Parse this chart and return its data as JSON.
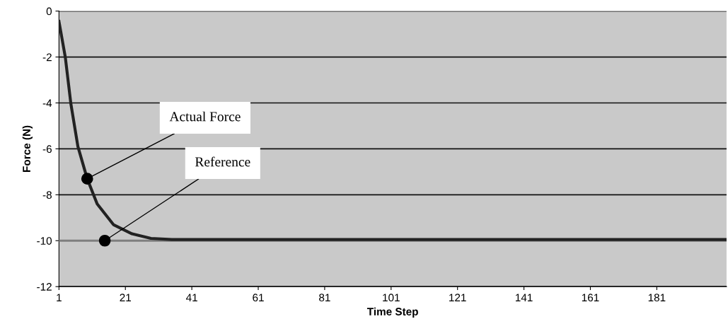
{
  "chart_data": {
    "type": "line",
    "xlabel": "Time Step",
    "ylabel": "Force (N)",
    "series": [
      {
        "name": "Reference",
        "color": "#7f7f7f",
        "x": [
          1,
          14.8,
          202
        ],
        "values": [
          -10,
          -10,
          -10
        ]
      },
      {
        "name": "Actual Force",
        "color": "#222222",
        "x": [
          1,
          2.9,
          4.6,
          6.7,
          9.5,
          12.5,
          17.4,
          23,
          28.7,
          35,
          41,
          61,
          81,
          101,
          121,
          141,
          161,
          181,
          202
        ],
        "values": [
          -0.45,
          -2.0,
          -4.05,
          -5.9,
          -7.3,
          -8.4,
          -9.3,
          -9.7,
          -9.9,
          -9.95,
          -9.95,
          -9.95,
          -9.95,
          -9.95,
          -9.95,
          -9.95,
          -9.95,
          -9.95,
          -9.95
        ]
      }
    ],
    "xlim": [
      1,
      202
    ],
    "ylim": [
      -12,
      0
    ],
    "xticks": [
      1,
      21,
      41,
      61,
      81,
      101,
      121,
      141,
      161,
      181
    ],
    "yticks": [
      0,
      -2,
      -4,
      -6,
      -8,
      -10,
      -12
    ],
    "grid": "y",
    "legend": false,
    "marker": "none",
    "line_style": "solid"
  }
}
